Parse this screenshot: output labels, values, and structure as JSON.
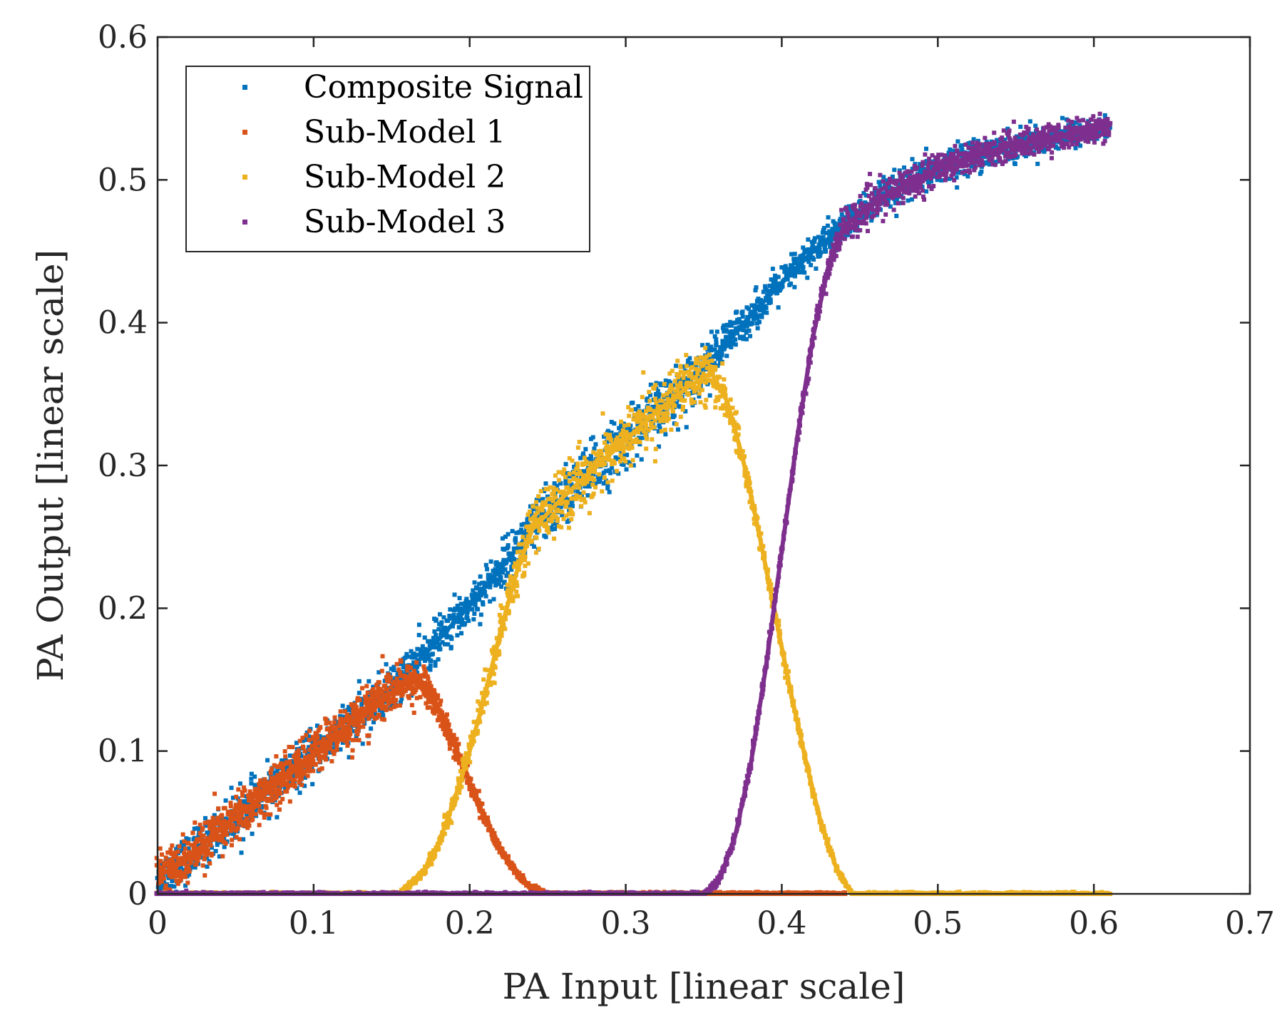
{
  "chart_data": {
    "type": "scatter",
    "title": "",
    "xlabel": "PA Input [linear scale]",
    "ylabel": "PA Output [linear scale]",
    "xlim": [
      0,
      0.7
    ],
    "ylim": [
      0,
      0.6
    ],
    "xticks": [
      0,
      0.1,
      0.2,
      0.3,
      0.4,
      0.5,
      0.6,
      0.7
    ],
    "xtick_labels": [
      "0",
      "0.1",
      "0.2",
      "0.3",
      "0.4",
      "0.5",
      "0.6",
      "0.7"
    ],
    "yticks": [
      0,
      0.1,
      0.2,
      0.3,
      0.4,
      0.5,
      0.6
    ],
    "ytick_labels": [
      "0",
      "0.1",
      "0.2",
      "0.3",
      "0.4",
      "0.5",
      "0.6"
    ],
    "grid": false,
    "legend_position": "top-left",
    "series": [
      {
        "name": "Composite Signal",
        "color": "#0072BD",
        "x": [
          0.0,
          0.02,
          0.04,
          0.06,
          0.08,
          0.1,
          0.12,
          0.14,
          0.16,
          0.18,
          0.2,
          0.22,
          0.24,
          0.26,
          0.28,
          0.3,
          0.32,
          0.34,
          0.36,
          0.38,
          0.4,
          0.42,
          0.44,
          0.46,
          0.48,
          0.5,
          0.52,
          0.54,
          0.56,
          0.58,
          0.6,
          0.61
        ],
        "y": [
          0.012,
          0.025,
          0.045,
          0.062,
          0.08,
          0.098,
          0.116,
          0.134,
          0.155,
          0.178,
          0.202,
          0.228,
          0.255,
          0.278,
          0.298,
          0.318,
          0.338,
          0.358,
          0.38,
          0.405,
          0.428,
          0.45,
          0.468,
          0.484,
          0.497,
          0.508,
          0.516,
          0.522,
          0.527,
          0.531,
          0.535,
          0.537
        ],
        "spread": [
          0.014,
          0.016,
          0.016,
          0.016,
          0.016,
          0.016,
          0.016,
          0.016,
          0.016,
          0.015,
          0.015,
          0.016,
          0.02,
          0.02,
          0.02,
          0.02,
          0.02,
          0.018,
          0.016,
          0.012,
          0.012,
          0.012,
          0.012,
          0.012,
          0.012,
          0.011,
          0.011,
          0.01,
          0.01,
          0.009,
          0.009,
          0.008
        ]
      },
      {
        "name": "Sub-Model 1",
        "color": "#D95319",
        "x": [
          0.0,
          0.02,
          0.04,
          0.06,
          0.08,
          0.1,
          0.12,
          0.14,
          0.16,
          0.17,
          0.18,
          0.19,
          0.2,
          0.21,
          0.22,
          0.23,
          0.24,
          0.25,
          0.26,
          0.4,
          0.44
        ],
        "y": [
          0.012,
          0.025,
          0.045,
          0.062,
          0.08,
          0.098,
          0.116,
          0.134,
          0.148,
          0.148,
          0.13,
          0.105,
          0.078,
          0.052,
          0.03,
          0.014,
          0.004,
          0.0,
          0.0,
          0.0,
          0.0
        ],
        "spread": [
          0.014,
          0.016,
          0.016,
          0.016,
          0.016,
          0.016,
          0.016,
          0.016,
          0.014,
          0.013,
          0.01,
          0.008,
          0.007,
          0.005,
          0.004,
          0.003,
          0.002,
          0.001,
          0.001,
          0.001,
          0.001
        ]
      },
      {
        "name": "Sub-Model 2",
        "color": "#EDB120",
        "x": [
          0.0,
          0.155,
          0.17,
          0.18,
          0.19,
          0.2,
          0.21,
          0.22,
          0.23,
          0.24,
          0.26,
          0.28,
          0.3,
          0.32,
          0.34,
          0.355,
          0.365,
          0.375,
          0.385,
          0.395,
          0.405,
          0.415,
          0.425,
          0.435,
          0.445,
          0.5,
          0.61
        ],
        "y": [
          0.0,
          0.0,
          0.015,
          0.035,
          0.065,
          0.1,
          0.14,
          0.185,
          0.225,
          0.255,
          0.278,
          0.298,
          0.318,
          0.338,
          0.355,
          0.365,
          0.345,
          0.305,
          0.255,
          0.2,
          0.145,
          0.095,
          0.05,
          0.018,
          0.0,
          0.0,
          0.0
        ],
        "spread": [
          0.001,
          0.001,
          0.004,
          0.006,
          0.008,
          0.01,
          0.012,
          0.015,
          0.02,
          0.02,
          0.02,
          0.02,
          0.02,
          0.02,
          0.02,
          0.02,
          0.016,
          0.01,
          0.008,
          0.007,
          0.006,
          0.005,
          0.004,
          0.003,
          0.001,
          0.001,
          0.001
        ]
      },
      {
        "name": "Sub-Model 3",
        "color": "#7E2F8E",
        "x": [
          0.0,
          0.35,
          0.36,
          0.37,
          0.38,
          0.39,
          0.4,
          0.41,
          0.42,
          0.43,
          0.44,
          0.46,
          0.48,
          0.5,
          0.52,
          0.54,
          0.56,
          0.58,
          0.6,
          0.61
        ],
        "y": [
          0.0,
          0.0,
          0.01,
          0.04,
          0.09,
          0.16,
          0.24,
          0.32,
          0.39,
          0.44,
          0.468,
          0.484,
          0.497,
          0.508,
          0.516,
          0.522,
          0.527,
          0.531,
          0.535,
          0.537
        ],
        "spread": [
          0.001,
          0.001,
          0.003,
          0.004,
          0.005,
          0.006,
          0.006,
          0.007,
          0.008,
          0.01,
          0.012,
          0.012,
          0.012,
          0.011,
          0.011,
          0.01,
          0.01,
          0.009,
          0.009,
          0.008
        ]
      }
    ]
  }
}
